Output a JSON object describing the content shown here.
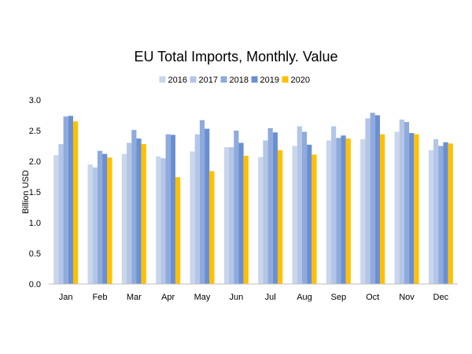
{
  "chart_data": {
    "type": "bar",
    "title": "EU Total Imports, Monthly. Value",
    "ylabel": "Billion USD",
    "xlabel": "",
    "ylim": [
      0,
      3.0
    ],
    "yticks": [
      "0.0",
      "0.5",
      "1.0",
      "1.5",
      "2.0",
      "2.5",
      "3.0"
    ],
    "legend_position": "top",
    "grid": false,
    "categories": [
      "Jan",
      "Feb",
      "Mar",
      "Apr",
      "May",
      "Jun",
      "Jul",
      "Aug",
      "Sep",
      "Oct",
      "Nov",
      "Dec"
    ],
    "series": [
      {
        "name": "2016",
        "color": "#c9d6ec",
        "values": [
          2.1,
          1.95,
          2.12,
          2.08,
          2.16,
          2.23,
          2.07,
          2.25,
          2.34,
          2.36,
          2.48,
          2.18
        ]
      },
      {
        "name": "2017",
        "color": "#b3c6e7",
        "values": [
          2.28,
          1.9,
          2.3,
          2.05,
          2.44,
          2.23,
          2.34,
          2.57,
          2.57,
          2.7,
          2.68,
          2.36
        ]
      },
      {
        "name": "2018",
        "color": "#8faadc",
        "values": [
          2.73,
          2.17,
          2.51,
          2.44,
          2.67,
          2.5,
          2.54,
          2.48,
          2.38,
          2.79,
          2.64,
          2.25
        ]
      },
      {
        "name": "2019",
        "color": "#6a8fd3",
        "values": [
          2.74,
          2.12,
          2.37,
          2.43,
          2.53,
          2.3,
          2.47,
          2.27,
          2.42,
          2.75,
          2.46,
          2.31
        ]
      },
      {
        "name": "2020",
        "color": "#ffc000",
        "values": [
          2.65,
          2.06,
          2.28,
          1.74,
          1.84,
          2.09,
          2.18,
          2.11,
          2.37,
          2.44,
          2.44,
          2.29
        ]
      }
    ]
  }
}
